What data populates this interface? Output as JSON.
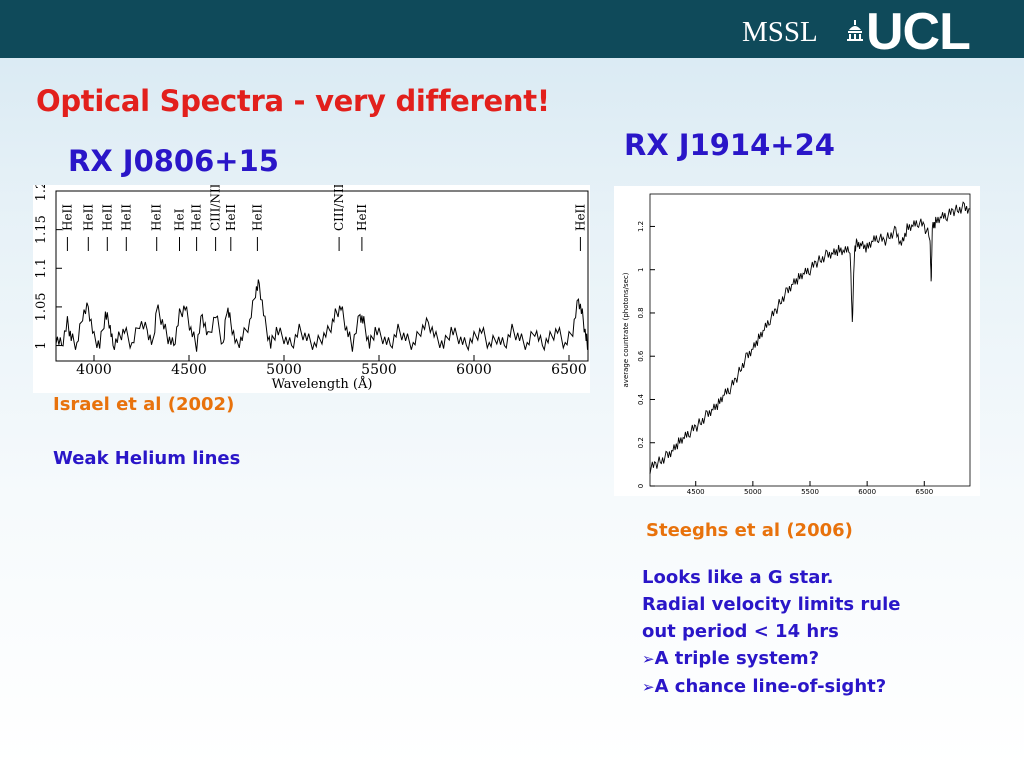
{
  "header": {
    "logo_mssl": "MSSL",
    "logo_ucl": "UCL",
    "colors": {
      "bar": "#0f4a5a",
      "title": "#e2201c",
      "blue": "#2a16c8",
      "orange": "#e8720c"
    }
  },
  "slide": {
    "title": "Optical Spectra - very different!",
    "left_object": "RX J0806+15",
    "right_object": "RX J1914+24",
    "left_citation": "Israel et al (2002)",
    "left_note": "Weak Helium lines",
    "right_citation": "Steeghs et al (2006)",
    "right_notes": [
      "Looks like a G star.",
      "Radial velocity limits rule",
      "out period < 14 hrs"
    ],
    "bullets": [
      "A triple system?",
      "A chance line-of-sight?"
    ],
    "bullet_icon": "arrow-bullet-icon"
  },
  "chart_data": [
    {
      "type": "line",
      "title": "",
      "xlabel": "Wavelength (Å)",
      "ylabel": "",
      "xlim": [
        3800,
        6600
      ],
      "ylim": [
        0.98,
        1.2
      ],
      "x_ticks": [
        4000,
        4500,
        5000,
        5500,
        6000,
        6500
      ],
      "y_ticks": [
        1,
        1.05,
        1.1,
        1.15,
        1.2
      ],
      "line_labels": [
        {
          "label": "HeII",
          "x": 3860
        },
        {
          "label": "HeII",
          "x": 3970
        },
        {
          "label": "HeII",
          "x": 4070
        },
        {
          "label": "HeII",
          "x": 4170
        },
        {
          "label": "HeII",
          "x": 4330
        },
        {
          "label": "HeI",
          "x": 4450
        },
        {
          "label": "HeII",
          "x": 4540
        },
        {
          "label": "CIII/NIII",
          "x": 4640
        },
        {
          "label": "HeII",
          "x": 4720
        },
        {
          "label": "HeII",
          "x": 4860
        },
        {
          "label": "CIII/NIII",
          "x": 5290
        },
        {
          "label": "HeII",
          "x": 5410
        },
        {
          "label": "HeII",
          "x": 6560
        }
      ],
      "series": [
        {
          "x": [
            3800,
            3830,
            3860,
            3880,
            3910,
            3940,
            3970,
            4000,
            4030,
            4060,
            4080,
            4100,
            4130,
            4160,
            4200,
            4240,
            4280,
            4310,
            4330,
            4360,
            4390,
            4420,
            4450,
            4480,
            4510,
            4540,
            4570,
            4600,
            4640,
            4680,
            4700,
            4720,
            4750,
            4780,
            4820,
            4850,
            4870,
            4900,
            4930,
            4960,
            5000,
            5040,
            5080,
            5120,
            5160,
            5200,
            5240,
            5270,
            5300,
            5330,
            5360,
            5400,
            5420,
            5450,
            5480,
            5520,
            5560,
            5600,
            5640,
            5680,
            5720,
            5760,
            5800,
            5840,
            5880,
            5920,
            5960,
            6000,
            6040,
            6080,
            6120,
            6160,
            6200,
            6240,
            6280,
            6320,
            6360,
            6400,
            6440,
            6480,
            6520,
            6550,
            6570,
            6590,
            6600
          ],
          "y": [
            1.01,
            1.0,
            1.03,
            1.01,
            1.0,
            1.04,
            1.05,
            1.01,
            1.0,
            1.04,
            1.03,
            1.0,
            1.01,
            1.02,
            1.0,
            1.03,
            1.02,
            1.0,
            1.05,
            1.03,
            1.01,
            1.0,
            1.04,
            1.05,
            1.02,
            1.0,
            1.04,
            1.01,
            1.04,
            1.0,
            1.05,
            1.03,
            1.0,
            1.01,
            1.03,
            1.07,
            1.08,
            1.03,
            1.0,
            1.02,
            1.01,
            1.0,
            1.02,
            1.01,
            1.0,
            1.01,
            1.02,
            1.04,
            1.05,
            1.02,
            1.0,
            1.04,
            1.03,
            1.0,
            1.02,
            1.01,
            1.0,
            1.02,
            1.01,
            1.0,
            1.02,
            1.03,
            1.01,
            1.0,
            1.02,
            1.01,
            1.0,
            1.01,
            1.02,
            1.0,
            1.01,
            1.0,
            1.02,
            1.01,
            1.0,
            1.02,
            1.0,
            1.01,
            1.02,
            1.0,
            1.02,
            1.06,
            1.04,
            1.01,
            1.0
          ]
        }
      ]
    },
    {
      "type": "line",
      "title": "",
      "xlabel": "",
      "ylabel": "average countrate (photons/sec)",
      "xlim": [
        4100,
        6900
      ],
      "ylim": [
        0,
        1.35
      ],
      "x_ticks": [
        4500,
        5000,
        5500,
        6000,
        6500
      ],
      "y_ticks": [
        0,
        0.2,
        0.4,
        0.6,
        0.8,
        1,
        1.2
      ],
      "series": [
        {
          "x": [
            4100,
            4150,
            4200,
            4250,
            4300,
            4350,
            4400,
            4450,
            4500,
            4550,
            4600,
            4650,
            4700,
            4750,
            4800,
            4850,
            4900,
            4950,
            5000,
            5050,
            5100,
            5150,
            5200,
            5250,
            5300,
            5350,
            5400,
            5450,
            5500,
            5550,
            5600,
            5650,
            5700,
            5750,
            5800,
            5850,
            5870,
            5890,
            5910,
            5950,
            6000,
            6050,
            6100,
            6150,
            6200,
            6250,
            6300,
            6350,
            6400,
            6450,
            6500,
            6550,
            6560,
            6570,
            6600,
            6650,
            6700,
            6750,
            6800,
            6850,
            6900
          ],
          "y": [
            0.08,
            0.1,
            0.12,
            0.14,
            0.17,
            0.2,
            0.22,
            0.25,
            0.27,
            0.3,
            0.33,
            0.36,
            0.38,
            0.42,
            0.45,
            0.49,
            0.55,
            0.6,
            0.64,
            0.68,
            0.72,
            0.77,
            0.81,
            0.86,
            0.9,
            0.94,
            0.96,
            0.98,
            1.0,
            1.03,
            1.05,
            1.07,
            1.08,
            1.09,
            1.08,
            1.1,
            0.75,
            1.1,
            1.12,
            1.12,
            1.1,
            1.13,
            1.15,
            1.13,
            1.16,
            1.18,
            1.12,
            1.19,
            1.2,
            1.22,
            1.2,
            1.15,
            0.93,
            1.2,
            1.22,
            1.24,
            1.25,
            1.27,
            1.28,
            1.29,
            1.28
          ]
        }
      ]
    }
  ]
}
